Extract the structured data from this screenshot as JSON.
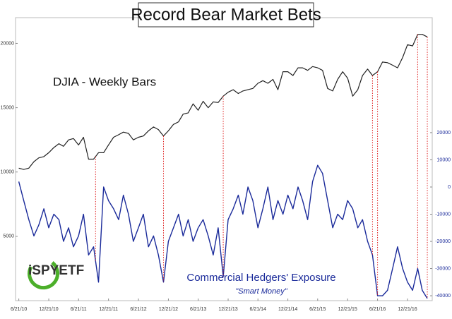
{
  "chart_data": {
    "type": "line",
    "title": "Record Bear Market Bets",
    "logo": "iSPYETF",
    "annotation": "\"Smart Money\"",
    "x": [
      "6/21/10",
      "7/21/10",
      "8/21/10",
      "9/21/10",
      "10/21/10",
      "11/21/10",
      "12/21/10",
      "1/21/11",
      "2/21/11",
      "3/21/11",
      "4/21/11",
      "5/21/11",
      "6/21/11",
      "7/21/11",
      "8/21/11",
      "9/21/11",
      "10/21/11",
      "11/21/11",
      "12/21/11",
      "1/21/12",
      "2/21/12",
      "3/21/12",
      "4/21/12",
      "5/21/12",
      "6/21/12",
      "7/21/12",
      "8/21/12",
      "9/21/12",
      "10/21/12",
      "11/21/12",
      "12/21/12",
      "1/21/13",
      "2/21/13",
      "3/21/13",
      "4/21/13",
      "5/21/13",
      "6/21/13",
      "7/21/13",
      "8/21/13",
      "9/21/13",
      "10/21/13",
      "11/21/13",
      "12/21/13",
      "1/21/14",
      "2/21/14",
      "3/21/14",
      "4/21/14",
      "5/21/14",
      "6/21/14",
      "7/21/14",
      "8/21/14",
      "9/21/14",
      "10/21/14",
      "11/21/14",
      "12/21/14",
      "1/21/15",
      "2/21/15",
      "3/21/15",
      "4/21/15",
      "5/21/15",
      "6/21/15",
      "7/21/15",
      "8/21/15",
      "9/21/15",
      "10/21/15",
      "11/21/15",
      "12/21/15",
      "1/21/16",
      "2/21/16",
      "3/21/16",
      "4/21/16",
      "5/21/16",
      "6/21/16",
      "7/21/16",
      "8/21/16",
      "9/21/16",
      "10/21/16",
      "11/21/16",
      "12/21/16",
      "1/21/17",
      "2/21/17",
      "3/21/17",
      "4/21/17"
    ],
    "series": [
      {
        "name": "DJIA - Weekly Bars",
        "color": "#222222",
        "axis": "y",
        "values": [
          10300,
          10200,
          10300,
          10800,
          11100,
          11200,
          11500,
          11900,
          12200,
          12000,
          12500,
          12600,
          12100,
          12700,
          11000,
          11000,
          11500,
          11500,
          12100,
          12700,
          12900,
          13100,
          13000,
          12500,
          12700,
          12800,
          13200,
          13500,
          13300,
          12800,
          13200,
          13700,
          13900,
          14500,
          14600,
          15300,
          14800,
          15500,
          15000,
          15450,
          15400,
          15900,
          16200,
          16400,
          16100,
          16300,
          16400,
          16500,
          16900,
          17100,
          16900,
          17200,
          16400,
          17800,
          17800,
          17500,
          18100,
          18100,
          17900,
          18200,
          18100,
          17900,
          16500,
          16300,
          17200,
          17800,
          17300,
          15900,
          16400,
          17500,
          18000,
          17500,
          17800,
          18550,
          18500,
          18300,
          18100,
          18900,
          19900,
          19800,
          20700,
          20700,
          20500
        ]
      },
      {
        "name": "Commercial Hedgers' Exposure",
        "color": "#1a2a9a",
        "axis": "y2",
        "values": [
          2000,
          -5000,
          -12000,
          -18000,
          -14000,
          -8000,
          -15000,
          -10000,
          -12000,
          -20000,
          -15000,
          -22000,
          -18000,
          -10000,
          -25000,
          -22000,
          -35000,
          0,
          -5000,
          -8000,
          -12000,
          -3000,
          -10000,
          -20000,
          -15000,
          -10000,
          -22000,
          -18000,
          -25000,
          -35000,
          -20000,
          -15000,
          -10000,
          -18000,
          -12000,
          -20000,
          -15000,
          -12000,
          -18000,
          -25000,
          -15000,
          -33000,
          -12000,
          -8000,
          -3000,
          -10000,
          0,
          -5000,
          -15000,
          -8000,
          0,
          -12000,
          -5000,
          -10000,
          -3000,
          -8000,
          0,
          -5000,
          -12000,
          2000,
          8000,
          5000,
          -5000,
          -15000,
          -10000,
          -12000,
          -5000,
          -8000,
          -15000,
          -12000,
          -20000,
          -25000,
          -40000,
          -40000,
          -38000,
          -30000,
          -22000,
          -30000,
          -35000,
          -38000,
          -30000,
          -38000,
          -41000
        ]
      }
    ],
    "marker_dates": [
      "10/3/11",
      "11/21/12",
      "11/21/13",
      "5/21/16",
      "6/21/16",
      "2/21/17",
      "4/21/17"
    ],
    "marker_color": "#e02020",
    "xlim": [
      "6/1/10",
      "5/21/17"
    ],
    "xticks": [
      "6/21/10",
      "12/21/10",
      "6/21/11",
      "12/21/11",
      "6/21/12",
      "12/21/12",
      "6/21/13",
      "12/21/13",
      "6/21/14",
      "12/21/14",
      "6/21/15",
      "12/21/15",
      "6/21/16",
      "12/21/16"
    ],
    "ylim": [
      0,
      22000
    ],
    "yticks": [
      5000,
      10000,
      15000,
      20000
    ],
    "y2lim": [
      -41800,
      62300
    ],
    "y2ticks": [
      -40000,
      -30000,
      -20000,
      -10000,
      0,
      10000,
      20000
    ],
    "grid": false
  }
}
